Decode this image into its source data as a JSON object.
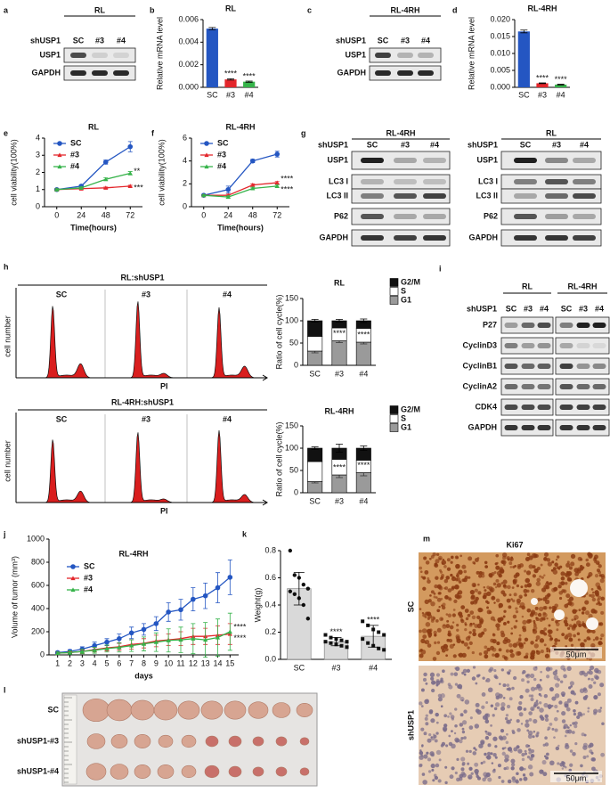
{
  "panel_labels": [
    "a",
    "b",
    "c",
    "d",
    "e",
    "f",
    "g",
    "h",
    "i",
    "j",
    "k",
    "l",
    "m"
  ],
  "chart_data": [
    {
      "type": "bar",
      "title": "RL",
      "ylabel": "Relative mRNA level",
      "categories": [
        "SC",
        "#3",
        "#4"
      ],
      "values": [
        0.0052,
        0.0007,
        0.0005
      ],
      "errors": [
        0.0001,
        6e-05,
        5e-05
      ],
      "colors": [
        "#2456c2",
        "#e3262b",
        "#36b34a"
      ],
      "significance": [
        null,
        "****",
        "****"
      ],
      "ylim": [
        0,
        0.006
      ],
      "yticks": [
        {
          "value": 0,
          "label": "0.000"
        },
        0.002,
        0.004,
        0.006
      ]
    },
    {
      "type": "bar",
      "title": "RL-4RH",
      "ylabel": "Relative mRNA level",
      "categories": [
        "SC",
        "#3",
        "#4"
      ],
      "values": [
        0.0165,
        0.0012,
        0.0008
      ],
      "errors": [
        0.0004,
        0.0001,
        0.0001
      ],
      "colors": [
        "#2456c2",
        "#e3262b",
        "#36b34a"
      ],
      "significance": [
        null,
        "****",
        "****"
      ],
      "ylim": [
        0,
        0.02
      ],
      "yticks": [
        {
          "value": 0,
          "label": "0.000"
        },
        0.005,
        {
          "value": 0.01,
          "label": "0.010"
        },
        0.015,
        {
          "value": 0.02,
          "label": "0.020"
        }
      ]
    },
    {
      "type": "line",
      "title": "RL",
      "xlabel": "Time(hours)",
      "ylabel": "cell viability(100%)",
      "x": [
        0,
        24,
        48,
        72
      ],
      "xlim": [
        -12,
        84
      ],
      "xticks": [
        0,
        24,
        48,
        72
      ],
      "ylim": [
        0,
        4
      ],
      "yticks": [
        0,
        1,
        2,
        3,
        4
      ],
      "legend": "upper left",
      "series": [
        {
          "name": "SC",
          "color": "#2456c2",
          "values": [
            1,
            1.2,
            2.6,
            3.5
          ],
          "errors": [
            0.05,
            0.08,
            0.12,
            0.3
          ]
        },
        {
          "name": "#3",
          "color": "#e3262b",
          "values": [
            1,
            1.05,
            1.1,
            1.2
          ],
          "errors": [
            0.05,
            0.05,
            0.05,
            0.05
          ],
          "end_label": "***"
        },
        {
          "name": "#4",
          "color": "#36b34a",
          "values": [
            1,
            1.1,
            1.6,
            1.95
          ],
          "errors": [
            0.05,
            0.06,
            0.08,
            0.1
          ],
          "end_label": "**"
        }
      ]
    },
    {
      "type": "line",
      "title": "RL-4RH",
      "xlabel": "Time(hours)",
      "ylabel": "cell viability(100%)",
      "x": [
        0,
        24,
        48,
        72
      ],
      "xlim": [
        -12,
        84
      ],
      "xticks": [
        0,
        24,
        48,
        72
      ],
      "ylim": [
        0,
        6
      ],
      "yticks": [
        0,
        2,
        4,
        6
      ],
      "legend": "upper left",
      "series": [
        {
          "name": "SC",
          "color": "#2456c2",
          "values": [
            1,
            1.5,
            4.0,
            4.6
          ],
          "errors": [
            0.05,
            0.3,
            0.15,
            0.25
          ]
        },
        {
          "name": "#3",
          "color": "#e3262b",
          "values": [
            1,
            1.0,
            1.9,
            2.1
          ],
          "errors": [
            0.05,
            0.1,
            0.1,
            0.1
          ],
          "end_label": "****"
        },
        {
          "name": "#4",
          "color": "#36b34a",
          "values": [
            1,
            0.85,
            1.6,
            1.8
          ],
          "errors": [
            0.05,
            0.1,
            0.1,
            0.1
          ],
          "end_label": "****"
        }
      ]
    },
    {
      "type": "stacked_bar",
      "title": "RL",
      "ylabel": "Ratio of cell cycle(%)",
      "categories": [
        "SC",
        "#3",
        "#4"
      ],
      "ylim": [
        0,
        150
      ],
      "yticks": [
        0,
        50,
        100,
        150
      ],
      "legend": "right",
      "significance": [
        null,
        "****",
        "****"
      ],
      "series": [
        {
          "name": "G1",
          "color": "#9a9a9a",
          "values": [
            32,
            55,
            52
          ],
          "errors": [
            4,
            4,
            4
          ]
        },
        {
          "name": "S",
          "color": "#ffffff",
          "values": [
            33,
            29,
            31
          ]
        },
        {
          "name": "G2/M",
          "color": "#111111",
          "values": [
            35,
            16,
            17
          ],
          "errors": [
            3,
            3,
            4
          ]
        }
      ]
    },
    {
      "type": "stacked_bar",
      "title": "RL-4RH",
      "ylabel": "Ratio of cell cycle(%)",
      "categories": [
        "SC",
        "#3",
        "#4"
      ],
      "ylim": [
        0,
        150
      ],
      "yticks": [
        0,
        50,
        100,
        150
      ],
      "legend": "right",
      "significance": [
        null,
        "****",
        "****"
      ],
      "series": [
        {
          "name": "G1",
          "color": "#9a9a9a",
          "values": [
            25,
            40,
            45
          ],
          "errors": [
            3,
            6,
            7
          ]
        },
        {
          "name": "S",
          "color": "#ffffff",
          "values": [
            45,
            35,
            28
          ]
        },
        {
          "name": "G2/M",
          "color": "#111111",
          "values": [
            30,
            25,
            27
          ],
          "errors": [
            3,
            9,
            5
          ]
        }
      ]
    },
    {
      "type": "line",
      "title": "RL-4RH",
      "xlabel": "days",
      "ylabel": "Volume of tumor (mm³)",
      "x": [
        1,
        2,
        3,
        4,
        5,
        6,
        7,
        8,
        9,
        10,
        11,
        12,
        13,
        14,
        15
      ],
      "xlim": [
        0.3,
        15.7
      ],
      "xticks": [
        1,
        2,
        3,
        4,
        5,
        6,
        7,
        8,
        9,
        10,
        11,
        12,
        13,
        14,
        15
      ],
      "ylim": [
        0,
        1000
      ],
      "yticks": [
        0,
        200,
        400,
        600,
        800,
        1000
      ],
      "legend": "upper left",
      "series": [
        {
          "name": "SC",
          "color": "#2456c2",
          "values": [
            20,
            30,
            50,
            80,
            110,
            140,
            190,
            220,
            270,
            370,
            390,
            480,
            510,
            580,
            670
          ],
          "errors": [
            10,
            15,
            20,
            30,
            30,
            40,
            50,
            50,
            60,
            80,
            90,
            100,
            110,
            130,
            150
          ]
        },
        {
          "name": "#3",
          "color": "#e3262b",
          "values": [
            15,
            20,
            30,
            45,
            60,
            70,
            90,
            100,
            120,
            130,
            140,
            160,
            160,
            170,
            180
          ],
          "errors": [
            10,
            10,
            15,
            20,
            25,
            30,
            40,
            40,
            50,
            50,
            60,
            70,
            70,
            80,
            90
          ],
          "end_label": "****"
        },
        {
          "name": "#4",
          "color": "#36b34a",
          "values": [
            15,
            20,
            30,
            40,
            55,
            65,
            80,
            95,
            110,
            125,
            130,
            140,
            130,
            150,
            200
          ],
          "errors": [
            10,
            15,
            20,
            25,
            30,
            40,
            50,
            60,
            80,
            100,
            110,
            130,
            150,
            160,
            160
          ],
          "end_label": "****"
        }
      ]
    },
    {
      "type": "dot_bar",
      "ylabel": "Weight(g)",
      "categories": [
        "SC",
        "#3",
        "#4"
      ],
      "values": [
        0.52,
        0.13,
        0.17
      ],
      "errors": [
        0.12,
        0.03,
        0.08
      ],
      "color": "#d9d9d9",
      "points": [
        [
          0.8,
          0.62,
          0.6,
          0.55,
          0.52,
          0.5,
          0.48,
          0.45,
          0.4,
          0.3
        ],
        [
          0.18,
          0.16,
          0.15,
          0.14,
          0.13,
          0.13,
          0.12,
          0.11,
          0.1,
          0.09
        ],
        [
          0.28,
          0.25,
          0.22,
          0.2,
          0.18,
          0.15,
          0.12,
          0.1,
          0.08,
          0.07
        ]
      ],
      "significance": [
        null,
        "****",
        "****"
      ],
      "ylim": [
        0,
        0.8
      ],
      "yticks": [
        {
          "value": 0,
          "label": "0.0"
        },
        0.2,
        0.4,
        0.6,
        0.8
      ]
    }
  ],
  "blots": {
    "a": {
      "title": "RL",
      "row_header": "shUSP1",
      "lanes": [
        "SC",
        "#3",
        "#4"
      ],
      "rows": [
        "USP1",
        "GAPDH"
      ]
    },
    "c": {
      "title": "RL-4RH",
      "row_header": "shUSP1",
      "lanes": [
        "SC",
        "#3",
        "#4"
      ],
      "rows": [
        "USP1",
        "GAPDH"
      ]
    },
    "g_left": {
      "title": "RL-4RH",
      "row_header": "shUSP1",
      "lanes": [
        "SC",
        "#3",
        "#4"
      ],
      "rows": [
        "USP1",
        "LC3 I",
        "LC3 II",
        "P62",
        "GAPDH"
      ]
    },
    "g_right": {
      "title": "RL",
      "row_header": "shUSP1",
      "lanes": [
        "SC",
        "#3",
        "#4"
      ],
      "rows": [
        "USP1",
        "LC3 I",
        "LC3 II",
        "P62",
        "GAPDH"
      ]
    },
    "i": {
      "row_header": "shUSP1",
      "groups": [
        "RL",
        "RL-4RH"
      ],
      "lanes": [
        "SC",
        "#3",
        "#4",
        "SC",
        "#3",
        "#4"
      ],
      "rows": [
        "P27",
        "CyclinD3",
        "CyclinB1",
        "CyclinA2",
        "CDK4",
        "GAPDH"
      ]
    }
  },
  "flow": {
    "top": {
      "title": "RL:shUSP1",
      "columns": [
        "SC",
        "#3",
        "#4"
      ],
      "y_label": "cell number",
      "x_label": "PI"
    },
    "bottom": {
      "title": "RL-4RH:shUSP1",
      "columns": [
        "SC",
        "#3",
        "#4"
      ],
      "y_label": "cell number",
      "x_label": "PI"
    }
  },
  "tumors": {
    "rows": [
      "SC",
      "shUSP1-#3",
      "shUSP1-#4"
    ]
  },
  "ihc": {
    "title": "Ki67",
    "rows": [
      "SC",
      "shUSP1"
    ],
    "scale_bars": [
      "50μm",
      "50μm"
    ]
  }
}
